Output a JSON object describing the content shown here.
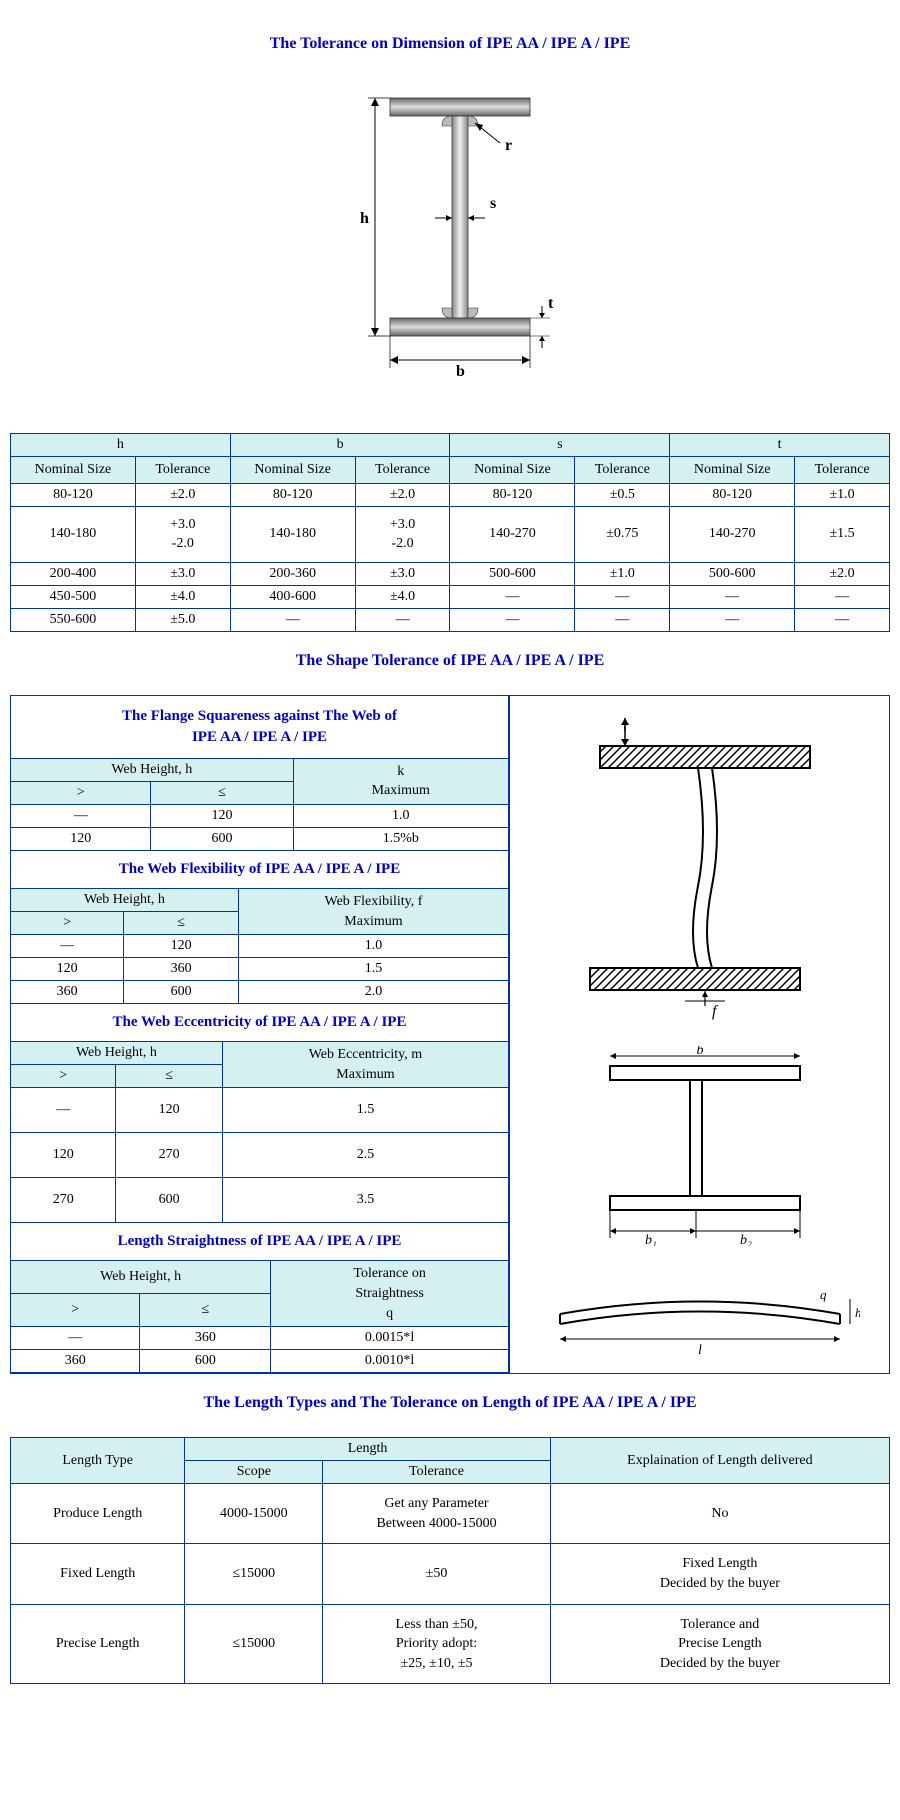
{
  "colors": {
    "title": "#0000cc",
    "border": "#0033aa",
    "header_bg": "#d4f0f0",
    "bg": "#ffffff"
  },
  "title1": "The Tolerance on Dimension of IPE AA / IPE A / IPE",
  "diagram": {
    "labels": {
      "h": "h",
      "b": "b",
      "s": "s",
      "t": "t",
      "r": "r"
    }
  },
  "dim_table": {
    "groups": [
      "h",
      "b",
      "s",
      "t"
    ],
    "sub": [
      "Nominal Size",
      "Tolerance"
    ],
    "rows": [
      [
        "80-120",
        "±2.0",
        "80-120",
        "±2.0",
        "80-120",
        "±0.5",
        "80-120",
        "±1.0"
      ],
      [
        "140-180",
        "+3.0\n-2.0",
        "140-180",
        "+3.0\n-2.0",
        "140-270",
        "±0.75",
        "140-270",
        "±1.5"
      ],
      [
        "200-400",
        "±3.0",
        "200-360",
        "±3.0",
        "500-600",
        "±1.0",
        "500-600",
        "±2.0"
      ],
      [
        "450-500",
        "±4.0",
        "400-600",
        "±4.0",
        "—",
        "—",
        "—",
        "—"
      ],
      [
        "550-600",
        "±5.0",
        "—",
        "—",
        "—",
        "—",
        "—",
        "—"
      ]
    ]
  },
  "title2": "The Shape Tolerance of IPE AA / IPE A / IPE",
  "flange": {
    "title": "The Flange Squareness against The Web of\nIPE AA / IPE A / IPE",
    "col_group": "Web Height, h",
    "val_header": "k\nMaximum",
    "gt": ">",
    "le": "≤",
    "rows": [
      [
        "—",
        "120",
        "1.0"
      ],
      [
        "120",
        "600",
        "1.5%b"
      ]
    ]
  },
  "flex": {
    "title": "The Web Flexibility of IPE AA / IPE A / IPE",
    "col_group": "Web Height, h",
    "val_header": "Web Flexibility, f\nMaximum",
    "gt": ">",
    "le": "≤",
    "rows": [
      [
        "—",
        "120",
        "1.0"
      ],
      [
        "120",
        "360",
        "1.5"
      ],
      [
        "360",
        "600",
        "2.0"
      ]
    ]
  },
  "ecc": {
    "title": "The Web Eccentricity of IPE AA / IPE A / IPE",
    "col_group": "Web Height, h",
    "val_header": "Web Eccentricity, m\nMaximum",
    "gt": ">",
    "le": "≤",
    "rows": [
      [
        "—",
        "120",
        "1.5"
      ],
      [
        "120",
        "270",
        "2.5"
      ],
      [
        "270",
        "600",
        "3.5"
      ]
    ]
  },
  "straight": {
    "title": "Length Straightness of IPE AA / IPE A / IPE",
    "col_group": "Web Height, h",
    "val_header": "Tolerance on\nStraightness\nq",
    "gt": ">",
    "le": "≤",
    "rows": [
      [
        "—",
        "360",
        "0.0015*l"
      ],
      [
        "360",
        "600",
        "0.0010*l"
      ]
    ]
  },
  "title3": "The Length Types and The Tolerance on Length of IPE AA / IPE A / IPE",
  "length_table": {
    "h1": "Length Type",
    "h2": "Length",
    "h2a": "Scope",
    "h2b": "Tolerance",
    "h3": "Explaination of Length delivered",
    "rows": [
      [
        "Produce Length",
        "4000-15000",
        "Get any Parameter\nBetween 4000-15000",
        "No"
      ],
      [
        "Fixed Length",
        "≤15000",
        "±50",
        "Fixed Length\nDecided by the buyer"
      ],
      [
        "Precise Length",
        "≤15000",
        "Less than ±50,\nPriority adopt:\n±25, ±10, ±5",
        "Tolerance and\nPrecise Length\nDecided by the buyer"
      ]
    ]
  }
}
